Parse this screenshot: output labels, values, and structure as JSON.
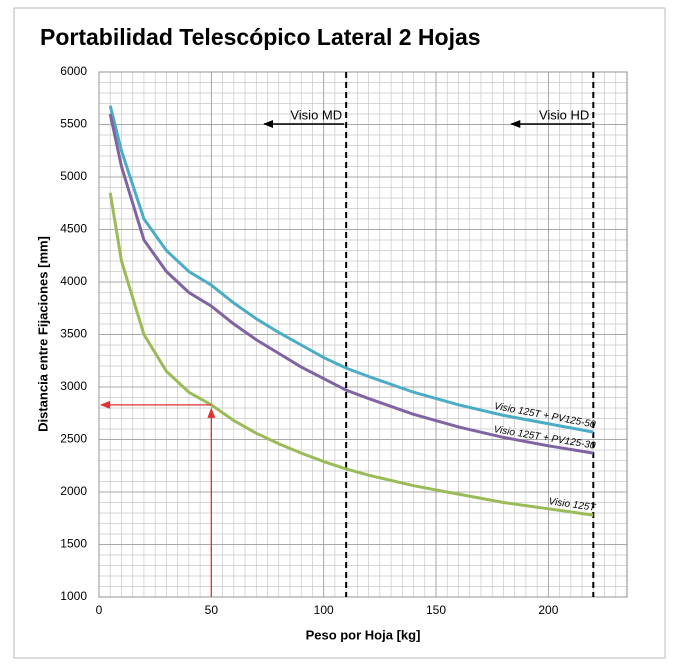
{
  "chart_data": {
    "type": "line",
    "title": "Portabilidad Telescópico Lateral 2 Hojas",
    "x_label": "Peso por Hoja [kg]",
    "y_label": "Distancia entre Fijaciones [mm]",
    "x": [
      5,
      10,
      20,
      30,
      40,
      50,
      60,
      70,
      80,
      90,
      100,
      110,
      120,
      140,
      160,
      180,
      200,
      220
    ],
    "series": [
      {
        "name": "Visio 125T + PV125-50",
        "color": "#4bacc6",
        "values": [
          5680,
          5250,
          4600,
          4300,
          4100,
          3970,
          3800,
          3650,
          3520,
          3400,
          3280,
          3180,
          3100,
          2950,
          2830,
          2730,
          2650,
          2570
        ]
      },
      {
        "name": "Visio 125T + PV125-30",
        "color": "#8064a2",
        "values": [
          5600,
          5100,
          4400,
          4100,
          3900,
          3770,
          3600,
          3450,
          3320,
          3190,
          3080,
          2970,
          2890,
          2740,
          2620,
          2520,
          2440,
          2370
        ]
      },
      {
        "name": "Visio 125T",
        "color": "#9bbb59",
        "values": [
          4850,
          4200,
          3500,
          3150,
          2950,
          2830,
          2680,
          2560,
          2460,
          2370,
          2290,
          2220,
          2160,
          2060,
          1980,
          1900,
          1840,
          1780
        ]
      }
    ],
    "xlim": [
      0,
      235
    ],
    "ylim": [
      1000,
      6000
    ],
    "xticks": [
      0,
      50,
      100,
      150,
      200
    ],
    "yticks": [
      1000,
      1500,
      2000,
      2500,
      3000,
      3500,
      4000,
      4500,
      5000,
      5500,
      6000
    ],
    "grid": true,
    "minor_grid": {
      "x": 5,
      "y": 100
    },
    "vlines": [
      {
        "x": 110,
        "label": "Visio MD"
      },
      {
        "x": 220,
        "label": "Visio HD"
      }
    ],
    "reading": {
      "x": 50,
      "y": 2830,
      "color": "#e03030"
    }
  }
}
